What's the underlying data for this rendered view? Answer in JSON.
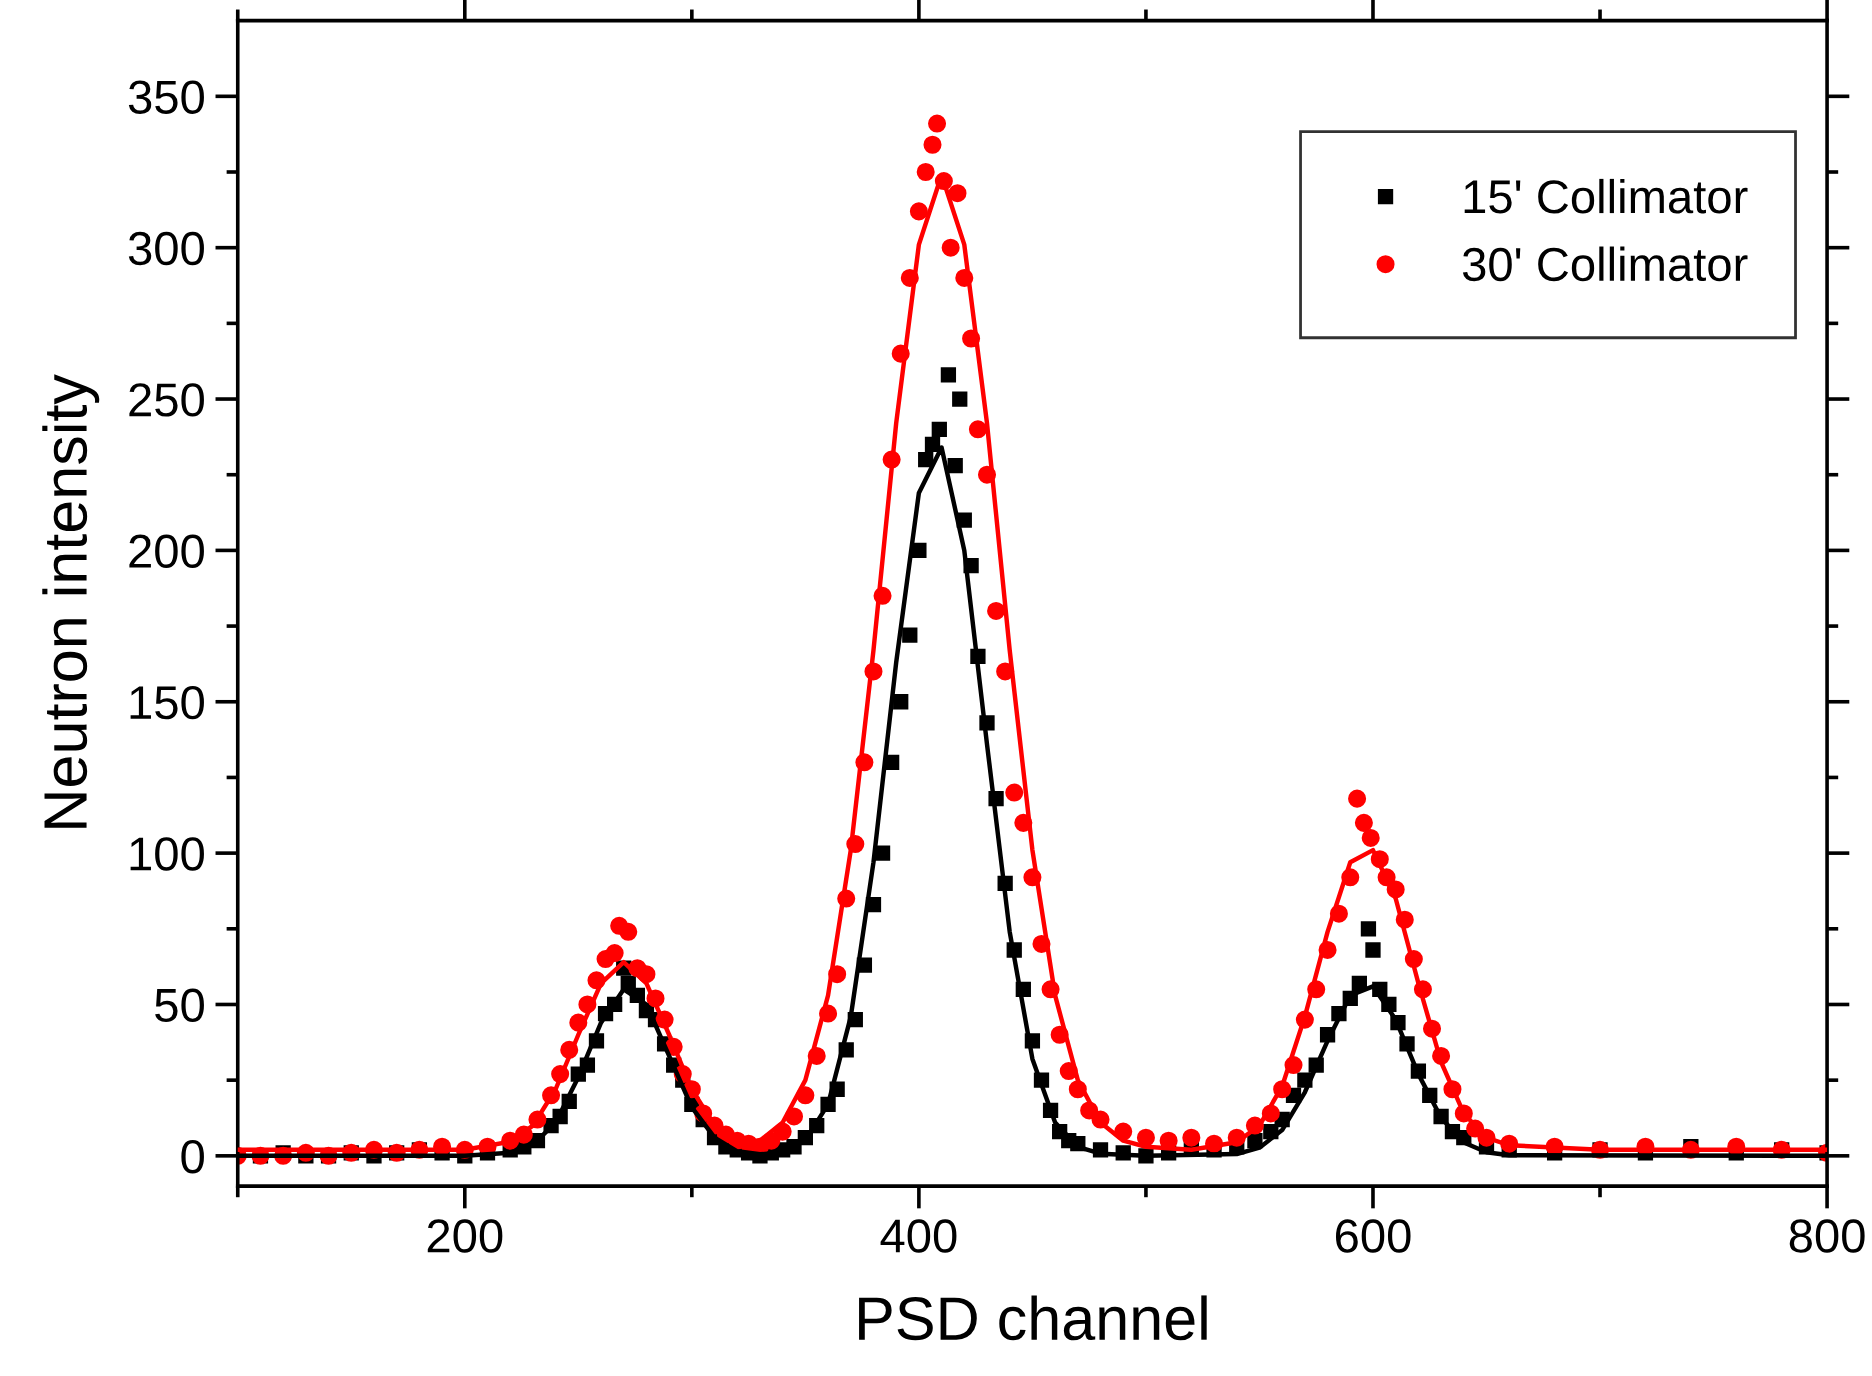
{
  "chart_data": {
    "type": "scatter",
    "xlabel": "PSD channel",
    "ylabel": "Neutron intensity",
    "xlim": [
      100,
      800
    ],
    "ylim": [
      -10,
      375
    ],
    "xticks": [
      {
        "value": 100,
        "label": null
      },
      200,
      {
        "value": 300,
        "label": null
      },
      400,
      {
        "value": 500,
        "label": null
      },
      600,
      {
        "value": 700,
        "label": null
      },
      800
    ],
    "yticks": [
      0,
      {
        "value": 25,
        "label": null
      },
      50,
      {
        "value": 75,
        "label": null
      },
      100,
      {
        "value": 125,
        "label": null
      },
      150,
      {
        "value": 175,
        "label": null
      },
      200,
      {
        "value": 225,
        "label": null
      },
      250,
      {
        "value": 275,
        "label": null
      },
      300,
      {
        "value": 325,
        "label": null
      },
      350
    ],
    "grid": false,
    "legend": "top right",
    "series": [
      {
        "name": "15' Collimator",
        "marker": "square",
        "color": "#000000",
        "x": [
          110,
          120,
          130,
          140,
          150,
          160,
          170,
          180,
          190,
          200,
          210,
          220,
          226,
          232,
          238,
          242,
          246,
          250,
          254,
          258,
          262,
          266,
          270,
          272,
          276,
          280,
          284,
          288,
          292,
          296,
          300,
          305,
          310,
          315,
          320,
          325,
          330,
          335,
          340,
          345,
          350,
          355,
          360,
          364,
          368,
          372,
          376,
          380,
          384,
          388,
          392,
          396,
          400,
          403,
          406,
          409,
          413,
          416,
          418,
          420,
          423,
          426,
          430,
          434,
          438,
          442,
          446,
          450,
          454,
          458,
          462,
          466,
          470,
          480,
          490,
          500,
          510,
          520,
          530,
          540,
          548,
          555,
          560,
          565,
          570,
          575,
          580,
          585,
          590,
          594,
          598,
          600,
          603,
          607,
          611,
          615,
          620,
          625,
          630,
          635,
          640,
          650,
          660,
          680,
          700,
          720,
          740,
          760,
          780,
          800
        ],
        "values": [
          0,
          1,
          0,
          0,
          1,
          0,
          1,
          2,
          1,
          0,
          1,
          2,
          3,
          5,
          10,
          13,
          18,
          27,
          30,
          38,
          47,
          50,
          62,
          57,
          53,
          48,
          45,
          37,
          30,
          25,
          17,
          12,
          6,
          3,
          2,
          1,
          0,
          1,
          2,
          3,
          6,
          10,
          17,
          22,
          35,
          45,
          63,
          83,
          100,
          130,
          150,
          172,
          200,
          230,
          235,
          240,
          258,
          228,
          250,
          210,
          195,
          165,
          143,
          118,
          90,
          68,
          55,
          38,
          25,
          15,
          8,
          5,
          4,
          2,
          1,
          0,
          1,
          3,
          2,
          3,
          5,
          8,
          12,
          20,
          25,
          30,
          40,
          47,
          52,
          57,
          75,
          68,
          55,
          50,
          44,
          37,
          28,
          20,
          13,
          8,
          6,
          3,
          2,
          1,
          2,
          1,
          3,
          1,
          2,
          1
        ]
      },
      {
        "name": "30' Collimator",
        "marker": "circle",
        "color": "#ff0000",
        "x": [
          100,
          110,
          120,
          130,
          140,
          150,
          160,
          170,
          180,
          190,
          200,
          210,
          220,
          226,
          232,
          238,
          242,
          246,
          250,
          254,
          258,
          262,
          266,
          268,
          272,
          276,
          280,
          284,
          288,
          292,
          296,
          300,
          305,
          310,
          315,
          320,
          325,
          330,
          335,
          340,
          345,
          350,
          355,
          360,
          364,
          368,
          372,
          376,
          380,
          384,
          388,
          392,
          396,
          400,
          403,
          406,
          408,
          411,
          414,
          417,
          420,
          423,
          426,
          430,
          434,
          438,
          442,
          446,
          450,
          454,
          458,
          462,
          466,
          470,
          475,
          480,
          490,
          500,
          510,
          520,
          530,
          540,
          548,
          555,
          560,
          565,
          570,
          575,
          580,
          585,
          590,
          593,
          596,
          599,
          603,
          606,
          610,
          614,
          618,
          622,
          626,
          630,
          635,
          640,
          645,
          650,
          660,
          680,
          700,
          720,
          740,
          760,
          780,
          800
        ],
        "values": [
          0,
          0,
          0,
          1,
          0,
          1,
          2,
          1,
          2,
          3,
          2,
          3,
          5,
          7,
          12,
          20,
          27,
          35,
          44,
          50,
          58,
          65,
          67,
          76,
          74,
          62,
          60,
          52,
          45,
          36,
          27,
          22,
          14,
          10,
          7,
          5,
          4,
          3,
          5,
          8,
          13,
          20,
          33,
          47,
          60,
          85,
          103,
          130,
          160,
          185,
          230,
          265,
          290,
          312,
          325,
          334,
          341,
          322,
          300,
          318,
          290,
          270,
          240,
          225,
          180,
          160,
          120,
          110,
          92,
          70,
          55,
          40,
          28,
          22,
          15,
          12,
          8,
          6,
          5,
          6,
          4,
          6,
          10,
          14,
          22,
          30,
          45,
          55,
          68,
          80,
          92,
          118,
          110,
          105,
          98,
          92,
          88,
          78,
          65,
          55,
          42,
          33,
          22,
          14,
          9,
          6,
          4,
          3,
          2,
          3,
          2,
          3,
          2,
          1
        ]
      },
      {
        "type": "line",
        "marker": "none",
        "line_style": "solid",
        "color": "#000000",
        "x": [
          100,
          200,
          220,
          230,
          240,
          250,
          260,
          270,
          280,
          290,
          300,
          310,
          320,
          330,
          340,
          350,
          360,
          370,
          380,
          390,
          400,
          410,
          420,
          430,
          440,
          450,
          460,
          470,
          480,
          500,
          540,
          550,
          560,
          570,
          580,
          590,
          600,
          610,
          620,
          630,
          640,
          650,
          660,
          800
        ],
        "values": [
          0,
          0,
          1,
          3.6,
          11,
          26,
          44,
          55,
          50,
          33,
          16,
          6,
          1.5,
          0.5,
          1.2,
          5.2,
          17,
          46,
          97,
          163,
          219,
          234,
          200,
          136,
          74,
          32,
          11,
          3,
          0.7,
          0,
          0.6,
          2.7,
          8.5,
          21,
          38,
          53,
          56,
          45,
          27,
          12.6,
          4.4,
          1.2,
          0.2,
          0
        ]
      },
      {
        "type": "line",
        "marker": "none",
        "line_style": "solid",
        "color": "#ff0000",
        "x": [
          100,
          200,
          220,
          230,
          240,
          250,
          260,
          270,
          280,
          290,
          300,
          310,
          320,
          330,
          340,
          350,
          360,
          370,
          380,
          390,
          400,
          410,
          420,
          430,
          440,
          450,
          460,
          470,
          480,
          490,
          500,
          520,
          540,
          550,
          560,
          570,
          580,
          590,
          600,
          610,
          620,
          630,
          640,
          650,
          660,
          700,
          800
        ],
        "values": [
          2,
          2,
          4.7,
          10,
          22,
          40,
          57,
          64,
          57,
          40,
          22,
          10,
          4.7,
          5,
          11,
          25,
          53,
          101,
          167,
          242,
          301,
          324,
          301,
          242,
          167,
          101,
          53,
          25,
          11,
          5,
          3,
          2,
          4.5,
          10,
          23,
          46,
          74,
          97,
          101,
          85,
          57,
          31,
          14,
          6,
          3.5,
          2,
          2
        ]
      }
    ]
  }
}
